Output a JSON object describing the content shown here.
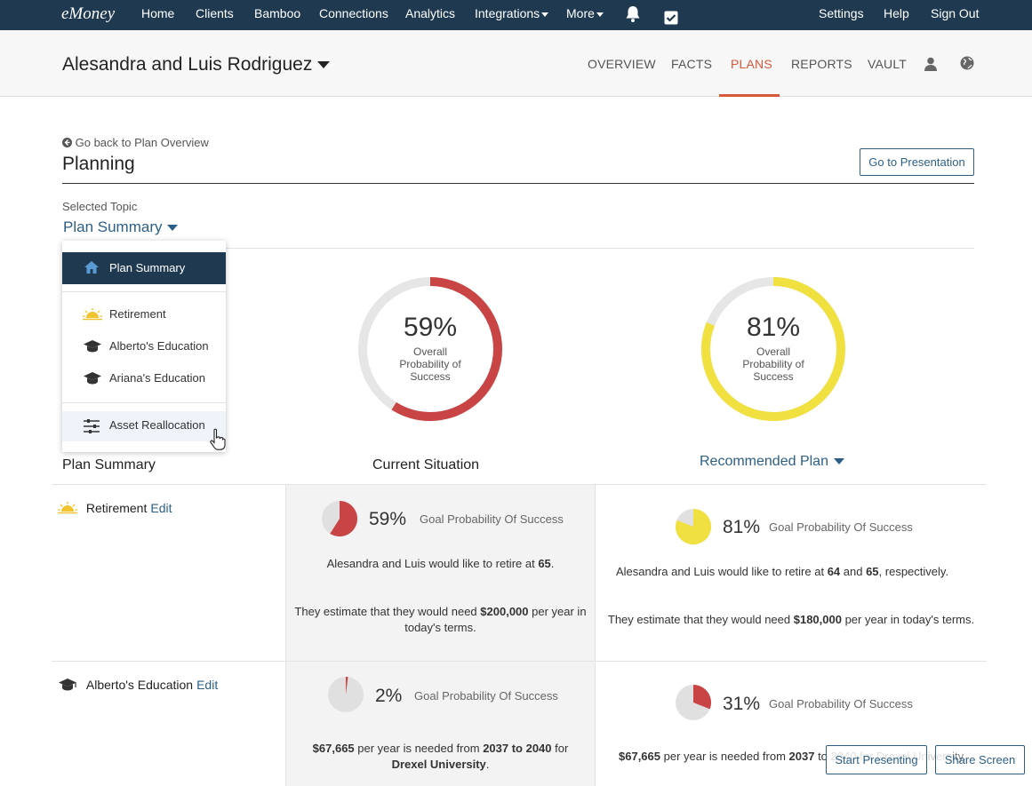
{
  "topnav": {
    "logo": "eMoney",
    "items": [
      "Home",
      "Clients",
      "Bamboo",
      "Connections",
      "Analytics",
      "Integrations",
      "More"
    ],
    "right": [
      "Settings",
      "Help",
      "Sign Out"
    ]
  },
  "client": {
    "name": "Alesandra and Luis Rodriguez",
    "tabs": [
      "OVERVIEW",
      "FACTS",
      "PLANS",
      "REPORTS",
      "VAULT"
    ],
    "active_tab": "PLANS"
  },
  "page": {
    "back_link": "Go back to Plan Overview",
    "title": "Planning",
    "go_presentation": "Go to Presentation",
    "selected_topic_label": "Selected Topic",
    "selected_topic": "Plan Summary"
  },
  "dropdown": {
    "items": [
      "Plan Summary",
      "Retirement",
      "Alberto's Education",
      "Ariana's Education",
      "Asset Reallocation"
    ]
  },
  "summary": {
    "current": {
      "pct": "59%",
      "value": 59,
      "label": "Overall Probability of Success",
      "color": "#c94545"
    },
    "recommended": {
      "pct": "81%",
      "value": 81,
      "label": "Overall Probability of Success",
      "color": "#f0e040"
    },
    "col_plan": "Plan Summary",
    "col_current": "Current Situation",
    "col_recommended": "Recommended Plan"
  },
  "rows": {
    "edit": "Edit",
    "goal_label": "Goal Probability Of Success",
    "retirement": {
      "label": "Retirement",
      "current_pct": "59%",
      "current_value": 59,
      "recommended_pct": "81%",
      "recommended_value": 81
    },
    "education": {
      "label": "Alberto's Education",
      "current_pct": "2%",
      "current_value": 2,
      "recommended_pct": "31%",
      "recommended_value": 31
    }
  },
  "buttons": {
    "start_presenting": "Start Presenting",
    "share_screen": "Share Screen"
  },
  "colors": {
    "nav": "#1f3a50",
    "accent": "#d9573a",
    "link": "#2d5f86",
    "red": "#c94545",
    "yellow": "#f0e040"
  }
}
